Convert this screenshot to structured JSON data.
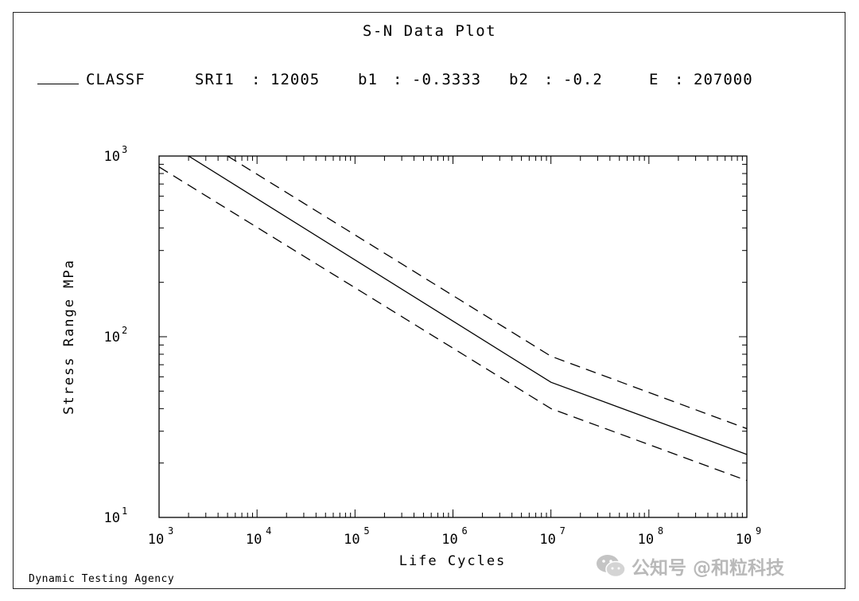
{
  "footer": {
    "agency": "Dynamic Testing Agency"
  },
  "legend": {
    "series": "CLASSF",
    "params": [
      {
        "label": "SRI1",
        "value": "12005"
      },
      {
        "label": "b1",
        "value": "-0.3333"
      },
      {
        "label": "b2",
        "value": "-0.2"
      },
      {
        "label": "E",
        "value": "207000"
      }
    ]
  },
  "watermark": {
    "text": "公知号 @和粒科技",
    "icon": "wechat-icon"
  },
  "colors": {
    "line": "#000000",
    "background": "#ffffff",
    "watermark": "#b9b9b9"
  },
  "chart_data": {
    "type": "line",
    "title": "S-N Data Plot",
    "xlabel": "Life Cycles",
    "ylabel": "Stress Range MPa",
    "xscale": "log",
    "yscale": "log",
    "xlim": [
      1000,
      1000000000
    ],
    "ylim": [
      10,
      1000
    ],
    "x_ticks": [
      {
        "base": "10",
        "exp": "3"
      },
      {
        "base": "10",
        "exp": "4"
      },
      {
        "base": "10",
        "exp": "5"
      },
      {
        "base": "10",
        "exp": "6"
      },
      {
        "base": "10",
        "exp": "7"
      },
      {
        "base": "10",
        "exp": "8"
      },
      {
        "base": "10",
        "exp": "9"
      }
    ],
    "y_ticks": [
      {
        "base": "10",
        "exp": "1"
      },
      {
        "base": "10",
        "exp": "2"
      },
      {
        "base": "10",
        "exp": "3"
      }
    ],
    "grid": false,
    "series": [
      {
        "name": "CLASSF",
        "style": "solid",
        "x": [
          2000,
          10000000,
          1000000000
        ],
        "y": [
          1000,
          56,
          22.3
        ]
      },
      {
        "style": "dashed",
        "x": [
          5000,
          10000000,
          1000000000
        ],
        "y": [
          1000,
          78,
          31
        ]
      },
      {
        "style": "dashed",
        "x": [
          1000,
          10000000,
          1000000000
        ],
        "y": [
          870,
          40,
          16
        ]
      }
    ]
  }
}
